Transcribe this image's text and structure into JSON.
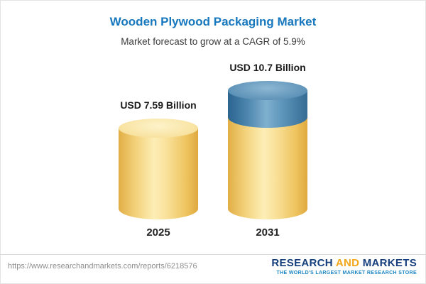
{
  "chart_data": {
    "type": "bar",
    "style": "3d-cylinder",
    "title": "Wooden Plywood Packaging Market",
    "subtitle": "Market forecast to grow at a CAGR of 5.9%",
    "cagr": "5.9%",
    "categories": [
      "2025",
      "2031"
    ],
    "values": [
      7.59,
      10.7
    ],
    "value_labels": [
      "USD 7.59 Billion",
      "USD 10.7 Billion"
    ],
    "unit": "USD Billion",
    "grid": false,
    "legend_position": "none",
    "growth_segment": {
      "bar": "2031",
      "value": 3.11,
      "color": "#4a82aa"
    },
    "colors": {
      "bar_primary": "#f6d77e",
      "bar_growth_segment": "#4a82aa",
      "title_text": "#1878be"
    }
  },
  "footer": {
    "url": "https://www.researchandmarkets.com/reports/6218576",
    "logo": {
      "word_research": "RESEARCH",
      "word_and": "AND",
      "word_markets": "MARKETS",
      "tagline": "THE WORLD'S LARGEST MARKET RESEARCH STORE"
    }
  }
}
